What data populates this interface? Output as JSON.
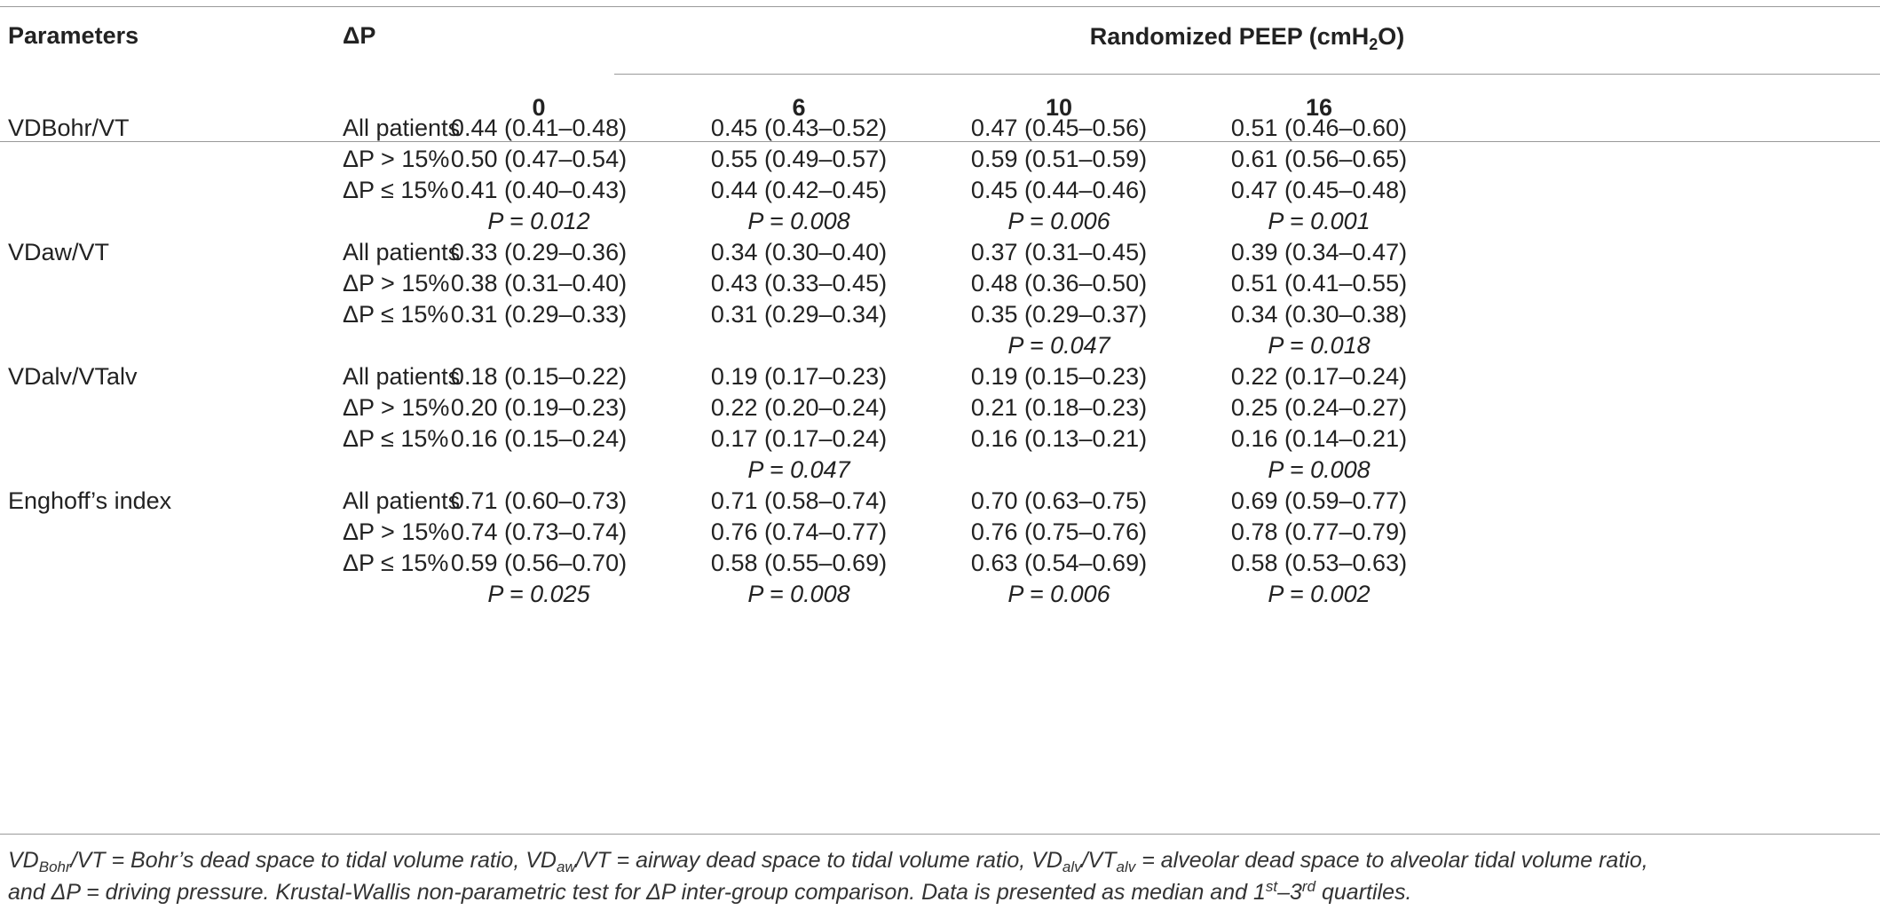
{
  "table": {
    "header": {
      "parameters": "Parameters",
      "delta_p": "ΔP",
      "peep_label": "Randomized PEEP (cmH",
      "peep_sub": "2",
      "peep_suffix": "O)",
      "columns": [
        "0",
        "6",
        "10",
        "16"
      ]
    },
    "rows": [
      {
        "param": "VDBohr/VT",
        "group": "All patients",
        "values": [
          "0.44 (0.41–0.48)",
          "0.45 (0.43–0.52)",
          "0.47 (0.45–0.56)",
          "0.51 (0.46–0.60)"
        ]
      },
      {
        "param": "",
        "group": "ΔP > 15%",
        "values": [
          "0.50 (0.47–0.54)",
          "0.55 (0.49–0.57)",
          "0.59 (0.51–0.59)",
          "0.61 (0.56–0.65)"
        ]
      },
      {
        "param": "",
        "group": "ΔP ≤ 15%",
        "values": [
          "0.41 (0.40–0.43)",
          "0.44 (0.42–0.45)",
          "0.45 (0.44–0.46)",
          "0.47 (0.45–0.48)"
        ]
      },
      {
        "param": "",
        "group": "",
        "pvalues": [
          "P = 0.012",
          "P = 0.008",
          "P = 0.006",
          "P = 0.001"
        ]
      },
      {
        "param": "VDaw/VT",
        "group": "All patients",
        "values": [
          "0.33 (0.29–0.36)",
          "0.34 (0.30–0.40)",
          "0.37 (0.31–0.45)",
          "0.39 (0.34–0.47)"
        ]
      },
      {
        "param": "",
        "group": "ΔP > 15%",
        "values": [
          "0.38 (0.31–0.40)",
          "0.43 (0.33–0.45)",
          "0.48 (0.36–0.50)",
          "0.51 (0.41–0.55)"
        ]
      },
      {
        "param": "",
        "group": "ΔP ≤ 15%",
        "values": [
          "0.31 (0.29–0.33)",
          "0.31 (0.29–0.34)",
          "0.35 (0.29–0.37)",
          "0.34 (0.30–0.38)"
        ]
      },
      {
        "param": "",
        "group": "",
        "pvalues": [
          "",
          "",
          "P = 0.047",
          "P = 0.018"
        ]
      },
      {
        "param": "VDalv/VTalv",
        "group": "All patients",
        "values": [
          "0.18 (0.15–0.22)",
          "0.19 (0.17–0.23)",
          "0.19 (0.15–0.23)",
          "0.22 (0.17–0.24)"
        ]
      },
      {
        "param": "",
        "group": "ΔP > 15%",
        "values": [
          "0.20 (0.19–0.23)",
          "0.22 (0.20–0.24)",
          "0.21 (0.18–0.23)",
          "0.25 (0.24–0.27)"
        ]
      },
      {
        "param": "",
        "group": "ΔP ≤ 15%",
        "values": [
          "0.16 (0.15–0.24)",
          "0.17 (0.17–0.24)",
          "0.16 (0.13–0.21)",
          "0.16 (0.14–0.21)"
        ]
      },
      {
        "param": "",
        "group": "",
        "pvalues": [
          "",
          "P = 0.047",
          "",
          "P = 0.008"
        ]
      },
      {
        "param": "Enghoff’s index",
        "group": "All patients",
        "values": [
          "0.71 (0.60–0.73)",
          "0.71 (0.58–0.74)",
          "0.70 (0.63–0.75)",
          "0.69 (0.59–0.77)"
        ]
      },
      {
        "param": "",
        "group": "ΔP > 15%",
        "values": [
          "0.74 (0.73–0.74)",
          "0.76 (0.74–0.77)",
          "0.76 (0.75–0.76)",
          "0.78 (0.77–0.79)"
        ]
      },
      {
        "param": "",
        "group": "ΔP ≤ 15%",
        "values": [
          "0.59 (0.56–0.70)",
          "0.58 (0.55–0.69)",
          "0.63 (0.54–0.69)",
          "0.58 (0.53–0.63)"
        ]
      },
      {
        "param": "",
        "group": "",
        "pvalues": [
          "P = 0.025",
          "P = 0.008",
          "P = 0.006",
          "P = 0.002"
        ]
      }
    ]
  },
  "footnote": {
    "vd1": "VD",
    "vd1_sub": "Bohr",
    "t1": "/VT = Bohr’s dead space to tidal volume ratio, ",
    "vd2": "VD",
    "vd2_sub": "aw",
    "t2": "/VT = airway dead space to tidal volume ratio, ",
    "vd3": "VD",
    "vd3_sub": "alv",
    "t3a": "/VT",
    "vt3_sub": "alv",
    "t3b": " = alveolar dead space to alveolar tidal volume ratio,",
    "t4": "and ΔP = driving pressure. Krustal-Wallis non-parametric test for ΔP inter-group comparison. Data is presented as median and 1",
    "sup1": "st",
    "t5": "–3",
    "sup2": "rd",
    "t6": " quartiles."
  }
}
